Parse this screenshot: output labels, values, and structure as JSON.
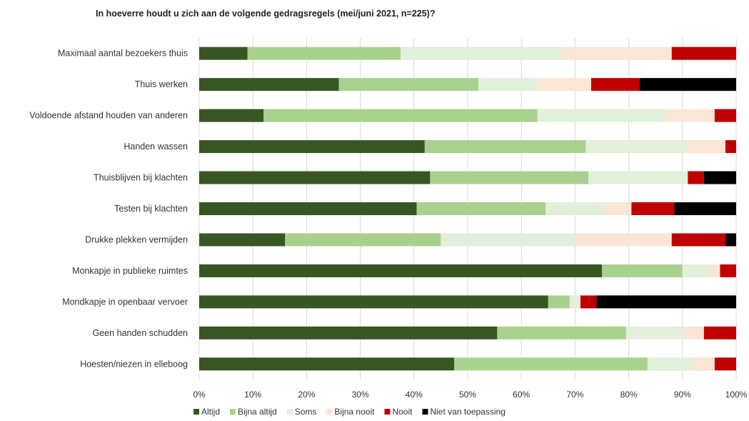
{
  "chart_data": {
    "type": "bar",
    "orientation": "horizontal",
    "stacked": true,
    "title": "In hoeverre houdt u zich aan de volgende gedragsregels (mei/juni 2021, n=225)?",
    "xlabel": "",
    "ylabel": "",
    "xlim": [
      0,
      100
    ],
    "x_ticks": [
      "0%",
      "10%",
      "20%",
      "30%",
      "40%",
      "50%",
      "60%",
      "70%",
      "80%",
      "90%",
      "100%"
    ],
    "grid": true,
    "legend_position": "bottom",
    "categories": [
      "Maximaal aantal bezoekers thuis",
      "Thuis werken",
      "Voldoende afstand houden van anderen",
      "Handen wassen",
      "Thuisblijven bij klachten",
      "Testen bij klachten",
      "Drukke plekken vermijden",
      "Monkapje in publieke ruimtes",
      "Mondkapje in openbaar vervoer",
      "Geen handen schudden",
      "Hoesten/niezen in elleboog"
    ],
    "series": [
      {
        "name": "Altijd",
        "color": "#375623",
        "values": [
          9,
          26,
          12,
          42,
          43,
          40.5,
          16,
          75,
          65,
          55.5,
          47.5
        ]
      },
      {
        "name": "Bijna altijd",
        "color": "#a9d18e",
        "values": [
          28.5,
          26,
          51,
          30,
          29.5,
          24,
          29,
          15,
          4,
          24,
          36
        ]
      },
      {
        "name": "Soms",
        "color": "#e2efda",
        "values": [
          30,
          11,
          24,
          19,
          18.5,
          11,
          25,
          5,
          2,
          11,
          8.5
        ]
      },
      {
        "name": "Bijna nooit",
        "color": "#fbe5d6",
        "values": [
          20.5,
          10,
          9,
          7,
          0,
          5,
          18,
          2,
          0,
          3.5,
          4
        ]
      },
      {
        "name": "Nooit",
        "color": "#c00000",
        "values": [
          12,
          9,
          4,
          2,
          3,
          8,
          10,
          3,
          3,
          6,
          4
        ]
      },
      {
        "name": "Niet van toepassing",
        "color": "#000000",
        "values": [
          0,
          18,
          0,
          0,
          6,
          11.5,
          2,
          0,
          26,
          0,
          0
        ]
      }
    ]
  }
}
